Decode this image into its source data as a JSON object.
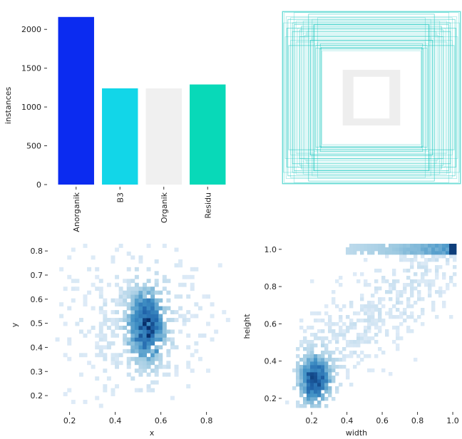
{
  "chart_data": [
    {
      "type": "bar",
      "categories": [
        "Anorganik",
        "B3",
        "Organik",
        "Residu"
      ],
      "values": [
        2160,
        1240,
        1240,
        1290
      ],
      "colors": [
        "#0b2bf0",
        "#12d6e8",
        "#f0f0f0",
        "#08d9b8"
      ],
      "ylabel": "instances",
      "xlabel": "",
      "ylim": [
        0,
        2250
      ],
      "yticks": [
        0,
        500,
        1000,
        1500,
        2000
      ],
      "grid": false
    },
    {
      "type": "box-overlay",
      "description_color": "#1ec8c0",
      "note": "normalized bounding box outlines centred at (0.5, 0.5)",
      "boxes_wh": [
        [
          0.99,
          0.99
        ],
        [
          0.97,
          0.98
        ],
        [
          0.95,
          0.93
        ],
        [
          0.93,
          0.9
        ],
        [
          0.9,
          0.92
        ],
        [
          0.88,
          0.86
        ],
        [
          0.86,
          0.84
        ],
        [
          0.84,
          0.88
        ],
        [
          0.82,
          0.8
        ],
        [
          0.8,
          0.78
        ],
        [
          0.78,
          0.82
        ],
        [
          0.76,
          0.74
        ],
        [
          0.74,
          0.72
        ],
        [
          0.72,
          0.76
        ],
        [
          0.7,
          0.68
        ],
        [
          0.68,
          0.66
        ],
        [
          0.66,
          0.7
        ],
        [
          0.64,
          0.62
        ],
        [
          0.62,
          0.6
        ],
        [
          0.6,
          0.64
        ],
        [
          0.58,
          0.56
        ],
        [
          0.56,
          0.58
        ],
        [
          0.55,
          0.54
        ],
        [
          0.96,
          0.7
        ],
        [
          0.7,
          0.96
        ],
        [
          0.92,
          0.6
        ],
        [
          0.6,
          0.92
        ],
        [
          0.88,
          0.76
        ],
        [
          0.76,
          0.88
        ],
        [
          0.84,
          0.64
        ],
        [
          0.64,
          0.84
        ],
        [
          0.98,
          0.86
        ],
        [
          0.86,
          0.98
        ],
        [
          0.8,
          0.7
        ],
        [
          0.7,
          0.8
        ],
        [
          0.62,
          0.57
        ],
        [
          0.57,
          0.62
        ],
        [
          0.9,
          0.66
        ],
        [
          0.66,
          0.9
        ],
        [
          0.94,
          0.8
        ]
      ]
    },
    {
      "type": "heatmap",
      "xlabel": "x",
      "ylabel": "y",
      "xlim": [
        0.12,
        0.92
      ],
      "ylim": [
        0.15,
        0.83
      ],
      "xticks": [
        0.2,
        0.4,
        0.6,
        0.8
      ],
      "yticks": [
        0.2,
        0.3,
        0.4,
        0.5,
        0.6,
        0.7,
        0.8
      ],
      "density_peak": [
        0.54,
        0.49
      ],
      "cmap": "Blues"
    },
    {
      "type": "heatmap",
      "xlabel": "width",
      "ylabel": "height",
      "xlim": [
        0.05,
        1.02
      ],
      "ylim": [
        0.15,
        1.03
      ],
      "xticks": [
        0.2,
        0.4,
        0.6,
        0.8,
        1.0
      ],
      "yticks": [
        0.2,
        0.4,
        0.6,
        0.8,
        1.0
      ],
      "density_peak": [
        0.22,
        0.3
      ],
      "cmap": "Blues"
    }
  ]
}
